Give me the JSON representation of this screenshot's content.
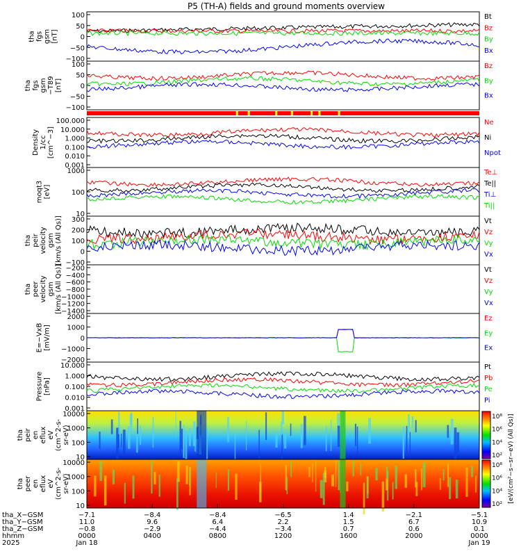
{
  "title": "P5 (TH-A) fields and ground moments overview",
  "colors": {
    "black": "#000000",
    "red": "#ff0000",
    "green": "#00dd00",
    "blue": "#0000ff",
    "yellow": "#ffff00"
  },
  "chart_data": [
    {
      "type": "line",
      "panel": "fgs-gsm",
      "ylabel": [
        "tha",
        "fgs",
        "gsm",
        "[nT]"
      ],
      "yticks": [
        "100",
        "50",
        "0",
        "−50",
        "−100"
      ],
      "ylim": [
        -100,
        100
      ],
      "legend": [
        {
          "name": "Bt",
          "color": "#000000"
        },
        {
          "name": "Bz",
          "color": "#ff0000"
        },
        {
          "name": "By",
          "color": "#00dd00"
        },
        {
          "name": "Bx",
          "color": "#0000ff"
        }
      ]
    },
    {
      "type": "line",
      "panel": "fgs-gsm-t89",
      "ylabel": [
        "tha",
        "fgs",
        "gsm",
        "−T89",
        "[nT]"
      ],
      "yticks": [
        "100",
        "50",
        "0",
        "−50",
        "−100"
      ],
      "ylim": [
        -120,
        120
      ],
      "legend": [
        {
          "name": "Bz",
          "color": "#ff0000"
        },
        {
          "name": "By",
          "color": "#00dd00"
        },
        {
          "name": "Bx",
          "color": "#0000ff"
        }
      ]
    },
    {
      "type": "line",
      "panel": "density",
      "ylabel": [
        "Density",
        "1/cc",
        "[cm^−3]"
      ],
      "yticks": [
        "100.000",
        "10.000",
        "1.000",
        "0.100",
        "0.010",
        "0.001"
      ],
      "log": true,
      "legend": [
        {
          "name": "Ne",
          "color": "#ff0000"
        },
        {
          "name": "Ni",
          "color": "#000000"
        },
        {
          "name": "Npot",
          "color": "#0000ff"
        }
      ]
    },
    {
      "type": "line",
      "panel": "temperature",
      "ylabel": [
        "moqt3",
        "[eV]"
      ],
      "yticks": [
        "1000",
        "100",
        "10"
      ],
      "log": true,
      "legend": [
        {
          "name": "Te⊥",
          "color": "#ff0000"
        },
        {
          "name": "Te||",
          "color": "#000000"
        },
        {
          "name": "Ti⊥",
          "color": "#0000ff"
        },
        {
          "name": "Ti||",
          "color": "#00dd00"
        }
      ]
    },
    {
      "type": "line",
      "panel": "peir-velocity",
      "ylabel": [
        "tha",
        "peir",
        "velocity",
        "gsm",
        "[km/s (All Qs)]"
      ],
      "yticks": [
        "300",
        "200",
        "100",
        "0",
        "−100"
      ],
      "legend": [
        {
          "name": "Vt",
          "color": "#000000"
        },
        {
          "name": "Vz",
          "color": "#ff0000"
        },
        {
          "name": "Vy",
          "color": "#00dd00"
        },
        {
          "name": "Vx",
          "color": "#0000ff"
        }
      ]
    },
    {
      "type": "line",
      "panel": "peer-velocity",
      "ylabel": [
        "tha",
        "peer",
        "velocity",
        "gsm",
        "[km/s (All Qs)]"
      ],
      "yticks": [
        "−200",
        "−400",
        "−600",
        "−800",
        "−1000",
        "−1200",
        "−1400"
      ],
      "legend": [
        {
          "name": "Vt",
          "color": "#000000"
        },
        {
          "name": "Vz",
          "color": "#ff0000"
        },
        {
          "name": "Vy",
          "color": "#00dd00"
        },
        {
          "name": "Vx",
          "color": "#0000ff"
        }
      ]
    },
    {
      "type": "line",
      "panel": "efield",
      "ylabel": [
        "E=−VxB",
        "[mV/m]"
      ],
      "yticks": [
        "2000",
        "1000",
        "0",
        "−1000",
        "−2000"
      ],
      "ylim": [
        -2000,
        2000
      ],
      "legend": [
        {
          "name": "Ez",
          "color": "#ff0000"
        },
        {
          "name": "Ey",
          "color": "#00dd00"
        },
        {
          "name": "Ex",
          "color": "#0000ff"
        }
      ]
    },
    {
      "type": "line",
      "panel": "pressure",
      "ylabel": [
        "Pressure",
        "[nPa]"
      ],
      "yticks": [
        "10.000",
        "1.000",
        "0.100",
        "0.010",
        "0.001"
      ],
      "log": true,
      "legend": [
        {
          "name": "Pt",
          "color": "#000000"
        },
        {
          "name": "Pb",
          "color": "#ff0000"
        },
        {
          "name": "Pe",
          "color": "#00dd00"
        },
        {
          "name": "Pi",
          "color": "#0000ff"
        }
      ]
    },
    {
      "type": "heatmap",
      "panel": "peir-en-eflux",
      "ylabel": [
        "tha",
        "peir",
        "en",
        "eflux",
        "eV",
        "(cm^2-s-",
        "sr-eV)"
      ],
      "yticks": [
        "10000",
        "1000",
        "100",
        "10"
      ]
    },
    {
      "type": "heatmap",
      "panel": "peer-en-eflux",
      "ylabel": [
        "tha",
        "peer",
        "en",
        "eflux",
        "eV",
        "(cm^2-s-",
        "sr-eV)"
      ],
      "yticks": [
        "10000",
        "1000",
        "100",
        "10"
      ]
    }
  ],
  "colorbar": {
    "ticks": [
      "10⁸",
      "10⁶",
      "10⁴",
      "10²"
    ],
    "label": "[eV/(cm²−s−sr−eV) (All Qs)]"
  },
  "footer": {
    "labels": [
      "tha_X−GSM",
      "tha_Y−GSM",
      "tha_Z−GSM",
      "hhmm",
      "2025"
    ],
    "columns": [
      {
        "x": "−7.1",
        "y": "11.0",
        "z": "−0.8",
        "hhmm": "0000",
        "date": "Jan 18"
      },
      {
        "x": "−8.4",
        "y": "9.6",
        "z": "−2.9",
        "hhmm": "0400",
        "date": ""
      },
      {
        "x": "−8.4",
        "y": "6.4",
        "z": "−4.4",
        "hhmm": "0800",
        "date": ""
      },
      {
        "x": "−6.5",
        "y": "2.2",
        "z": "−3.4",
        "hhmm": "1200",
        "date": ""
      },
      {
        "x": "1.4",
        "y": "1.5",
        "z": "0.7",
        "hhmm": "1600",
        "date": ""
      },
      {
        "x": "−2.1",
        "y": "6.7",
        "z": "0.6",
        "hhmm": "2000",
        "date": ""
      },
      {
        "x": "−5.1",
        "y": "10.9",
        "z": "0.1",
        "hhmm": "0000",
        "date": "Jan 19"
      }
    ]
  }
}
